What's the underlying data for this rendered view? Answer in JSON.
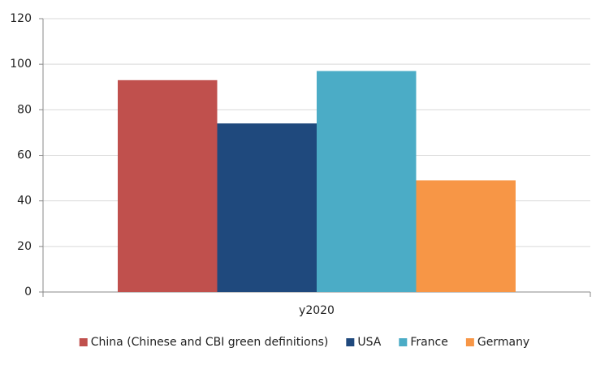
{
  "chart_data": {
    "type": "bar",
    "categories": [
      "y2020"
    ],
    "series": [
      {
        "name": "China (Chinese and CBI green definitions)",
        "color": "#c0504d",
        "values": [
          93
        ]
      },
      {
        "name": "USA",
        "color": "#1f497d",
        "values": [
          74
        ]
      },
      {
        "name": "France",
        "color": "#4bacc6",
        "values": [
          97
        ]
      },
      {
        "name": "Germany",
        "color": "#f79646",
        "values": [
          49
        ]
      }
    ],
    "ylim": [
      0,
      120
    ],
    "yticks": [
      0,
      20,
      40,
      60,
      80,
      100,
      120
    ],
    "grid": true,
    "legend": "bottom"
  }
}
